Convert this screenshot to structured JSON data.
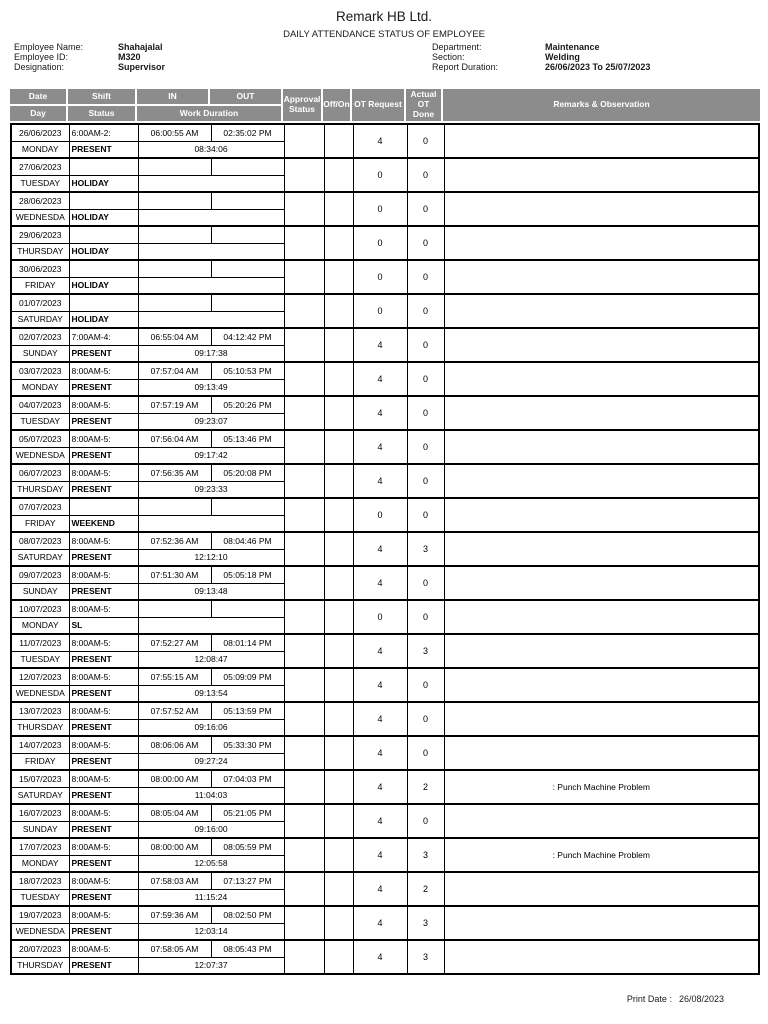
{
  "page": {
    "company": "Remark HB Ltd.",
    "report_title": "DAILY ATTENDANCE STATUS OF EMPLOYEE",
    "print_date_label": "Print Date :",
    "print_date": "26/08/2023"
  },
  "employee": {
    "name_label": "Employee Name:",
    "name": "Shahajalal",
    "id_label": "Employee ID:",
    "id": "M320",
    "designation_label": "Designation:",
    "designation": "Supervisor",
    "department_label": "Department:",
    "department": "Maintenance",
    "section_label": "Section:",
    "section": "Welding",
    "report_duration_label": "Report Duration:",
    "report_duration": "26/06/2023 To 25/07/2023"
  },
  "colors": {
    "header_bg": "#8c8c8c",
    "header_text": "#ffffff",
    "border": "#000000"
  },
  "table": {
    "headers": {
      "date": "Date",
      "day": "Day",
      "shift": "Shift",
      "status": "Status",
      "in": "IN",
      "out": "OUT",
      "work_duration": "Work Duration",
      "approval_status": "Approval Status",
      "off_on": "Off/On",
      "ot_request": "OT Request",
      "actual_ot_done": "Actual OT Done",
      "remarks": "Remarks & Observation"
    },
    "rows": [
      {
        "date": "26/06/2023",
        "day": "MONDAY",
        "shift": "6:00AM-2:",
        "status": "PRESENT",
        "in": "06:00:55 AM",
        "out": "02:35:02 PM",
        "duration": "08:34:06",
        "approval": "",
        "off_on": "",
        "ot_request": "4",
        "actual_ot": "0",
        "remarks": ""
      },
      {
        "date": "27/06/2023",
        "day": "TUESDAY",
        "shift": "",
        "status": "HOLIDAY",
        "in": "",
        "out": "",
        "duration": "",
        "approval": "",
        "off_on": "",
        "ot_request": "0",
        "actual_ot": "0",
        "remarks": ""
      },
      {
        "date": "28/06/2023",
        "day": "WEDNESDA",
        "shift": "",
        "status": "HOLIDAY",
        "in": "",
        "out": "",
        "duration": "",
        "approval": "",
        "off_on": "",
        "ot_request": "0",
        "actual_ot": "0",
        "remarks": ""
      },
      {
        "date": "29/06/2023",
        "day": "THURSDAY",
        "shift": "",
        "status": "HOLIDAY",
        "in": "",
        "out": "",
        "duration": "",
        "approval": "",
        "off_on": "",
        "ot_request": "0",
        "actual_ot": "0",
        "remarks": ""
      },
      {
        "date": "30/06/2023",
        "day": "FRIDAY",
        "shift": "",
        "status": "HOLIDAY",
        "in": "",
        "out": "",
        "duration": "",
        "approval": "",
        "off_on": "",
        "ot_request": "0",
        "actual_ot": "0",
        "remarks": ""
      },
      {
        "date": "01/07/2023",
        "day": "SATURDAY",
        "shift": "",
        "status": "HOLIDAY",
        "in": "",
        "out": "",
        "duration": "",
        "approval": "",
        "off_on": "",
        "ot_request": "0",
        "actual_ot": "0",
        "remarks": ""
      },
      {
        "date": "02/07/2023",
        "day": "SUNDAY",
        "shift": "7:00AM-4:",
        "status": "PRESENT",
        "in": "06:55:04 AM",
        "out": "04:12:42 PM",
        "duration": "09:17:38",
        "approval": "",
        "off_on": "",
        "ot_request": "4",
        "actual_ot": "0",
        "remarks": ""
      },
      {
        "date": "03/07/2023",
        "day": "MONDAY",
        "shift": "8:00AM-5:",
        "status": "PRESENT",
        "in": "07:57:04 AM",
        "out": "05:10:53 PM",
        "duration": "09:13:49",
        "approval": "",
        "off_on": "",
        "ot_request": "4",
        "actual_ot": "0",
        "remarks": ""
      },
      {
        "date": "04/07/2023",
        "day": "TUESDAY",
        "shift": "8:00AM-5:",
        "status": "PRESENT",
        "in": "07:57:19 AM",
        "out": "05:20:26 PM",
        "duration": "09:23:07",
        "approval": "",
        "off_on": "",
        "ot_request": "4",
        "actual_ot": "0",
        "remarks": ""
      },
      {
        "date": "05/07/2023",
        "day": "WEDNESDA",
        "shift": "8:00AM-5:",
        "status": "PRESENT",
        "in": "07:56:04 AM",
        "out": "05:13:46 PM",
        "duration": "09:17:42",
        "approval": "",
        "off_on": "",
        "ot_request": "4",
        "actual_ot": "0",
        "remarks": ""
      },
      {
        "date": "06/07/2023",
        "day": "THURSDAY",
        "shift": "8:00AM-5:",
        "status": "PRESENT",
        "in": "07:56:35 AM",
        "out": "05:20:08 PM",
        "duration": "09:23:33",
        "approval": "",
        "off_on": "",
        "ot_request": "4",
        "actual_ot": "0",
        "remarks": ""
      },
      {
        "date": "07/07/2023",
        "day": "FRIDAY",
        "shift": "",
        "status": "WEEKEND",
        "in": "",
        "out": "",
        "duration": "",
        "approval": "",
        "off_on": "",
        "ot_request": "0",
        "actual_ot": "0",
        "remarks": ""
      },
      {
        "date": "08/07/2023",
        "day": "SATURDAY",
        "shift": "8:00AM-5:",
        "status": "PRESENT",
        "in": "07:52:36 AM",
        "out": "08:04:46 PM",
        "duration": "12:12:10",
        "approval": "",
        "off_on": "",
        "ot_request": "4",
        "actual_ot": "3",
        "remarks": ""
      },
      {
        "date": "09/07/2023",
        "day": "SUNDAY",
        "shift": "8:00AM-5:",
        "status": "PRESENT",
        "in": "07:51:30 AM",
        "out": "05:05:18 PM",
        "duration": "09:13:48",
        "approval": "",
        "off_on": "",
        "ot_request": "4",
        "actual_ot": "0",
        "remarks": ""
      },
      {
        "date": "10/07/2023",
        "day": "MONDAY",
        "shift": "8:00AM-5:",
        "status": "SL",
        "in": "",
        "out": "",
        "duration": "",
        "approval": "",
        "off_on": "",
        "ot_request": "0",
        "actual_ot": "0",
        "remarks": ""
      },
      {
        "date": "11/07/2023",
        "day": "TUESDAY",
        "shift": "8:00AM-5:",
        "status": "PRESENT",
        "in": "07:52:27 AM",
        "out": "08:01:14 PM",
        "duration": "12:08:47",
        "approval": "",
        "off_on": "",
        "ot_request": "4",
        "actual_ot": "3",
        "remarks": ""
      },
      {
        "date": "12/07/2023",
        "day": "WEDNESDA",
        "shift": "8:00AM-5:",
        "status": "PRESENT",
        "in": "07:55:15 AM",
        "out": "05:09:09 PM",
        "duration": "09:13:54",
        "approval": "",
        "off_on": "",
        "ot_request": "4",
        "actual_ot": "0",
        "remarks": ""
      },
      {
        "date": "13/07/2023",
        "day": "THURSDAY",
        "shift": "8:00AM-5:",
        "status": "PRESENT",
        "in": "07:57:52 AM",
        "out": "05:13:59 PM",
        "duration": "09:16:06",
        "approval": "",
        "off_on": "",
        "ot_request": "4",
        "actual_ot": "0",
        "remarks": ""
      },
      {
        "date": "14/07/2023",
        "day": "FRIDAY",
        "shift": "8:00AM-5:",
        "status": "PRESENT",
        "in": "08:06:06 AM",
        "out": "05:33:30 PM",
        "duration": "09:27:24",
        "approval": "",
        "off_on": "",
        "ot_request": "4",
        "actual_ot": "0",
        "remarks": ""
      },
      {
        "date": "15/07/2023",
        "day": "SATURDAY",
        "shift": "8:00AM-5:",
        "status": "PRESENT",
        "in": "08:00:00 AM",
        "out": "07:04:03 PM",
        "duration": "11:04:03",
        "approval": "",
        "off_on": "",
        "ot_request": "4",
        "actual_ot": "2",
        "remarks": ": Punch Machine Problem"
      },
      {
        "date": "16/07/2023",
        "day": "SUNDAY",
        "shift": "8:00AM-5:",
        "status": "PRESENT",
        "in": "08:05:04 AM",
        "out": "05:21:05 PM",
        "duration": "09:16:00",
        "approval": "",
        "off_on": "",
        "ot_request": "4",
        "actual_ot": "0",
        "remarks": ""
      },
      {
        "date": "17/07/2023",
        "day": "MONDAY",
        "shift": "8:00AM-5:",
        "status": "PRESENT",
        "in": "08:00:00 AM",
        "out": "08:05:59 PM",
        "duration": "12:05:58",
        "approval": "",
        "off_on": "",
        "ot_request": "4",
        "actual_ot": "3",
        "remarks": ": Punch Machine Problem"
      },
      {
        "date": "18/07/2023",
        "day": "TUESDAY",
        "shift": "8:00AM-5:",
        "status": "PRESENT",
        "in": "07:58:03 AM",
        "out": "07:13:27 PM",
        "duration": "11:15:24",
        "approval": "",
        "off_on": "",
        "ot_request": "4",
        "actual_ot": "2",
        "remarks": ""
      },
      {
        "date": "19/07/2023",
        "day": "WEDNESDA",
        "shift": "8:00AM-5:",
        "status": "PRESENT",
        "in": "07:59:36 AM",
        "out": "08:02:50 PM",
        "duration": "12:03:14",
        "approval": "",
        "off_on": "",
        "ot_request": "4",
        "actual_ot": "3",
        "remarks": ""
      },
      {
        "date": "20/07/2023",
        "day": "THURSDAY",
        "shift": "8:00AM-5:",
        "status": "PRESENT",
        "in": "07:58:05 AM",
        "out": "08:05:43 PM",
        "duration": "12:07:37",
        "approval": "",
        "off_on": "",
        "ot_request": "4",
        "actual_ot": "3",
        "remarks": ""
      }
    ]
  }
}
